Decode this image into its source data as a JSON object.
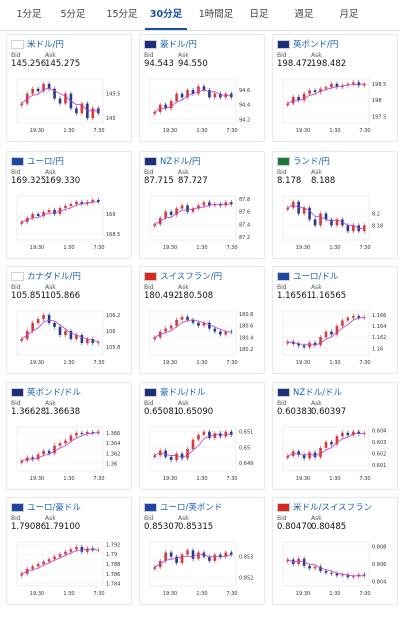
{
  "tabs": [
    {
      "label": "1分足"
    },
    {
      "label": "5分足"
    },
    {
      "label": "15分足"
    },
    {
      "label": "30分足",
      "active": true
    },
    {
      "label": "1時間足"
    },
    {
      "label": "日足"
    },
    {
      "label": "週足"
    },
    {
      "label": "月足"
    }
  ],
  "bid_label": "Bid",
  "ask_label": "Ask",
  "colors": {
    "up": "#d83a3a",
    "down": "#233a8c",
    "ma": "#c43bd0",
    "accent": "#1a4fa0"
  },
  "x_ticks": [
    "19:30",
    "1:30",
    "7:30"
  ],
  "cards": [
    {
      "pair": "米ドル/円",
      "flag": "us",
      "bid": "145.256",
      "ask": "145.275",
      "chart_data": {
        "type": "candlestick",
        "ylim": [
          144.9,
          145.8
        ],
        "yticks": [
          "145.5",
          "145"
        ],
        "close": [
          145.3,
          145.5,
          145.6,
          145.55,
          145.7,
          145.6,
          145.4,
          145.3,
          145.5,
          145.2,
          145.1,
          145.3,
          145.0,
          145.2,
          145.1
        ]
      }
    },
    {
      "pair": "豪ドル/円",
      "flag": "au",
      "bid": "94.543",
      "ask": "94.550",
      "chart_data": {
        "type": "candlestick",
        "ylim": [
          94.15,
          94.75
        ],
        "yticks": [
          "94.6",
          "94.4",
          "94.2"
        ],
        "close": [
          94.3,
          94.4,
          94.35,
          94.45,
          94.55,
          94.5,
          94.6,
          94.55,
          94.65,
          94.6,
          94.5,
          94.55,
          94.5,
          94.55,
          94.5
        ]
      }
    },
    {
      "pair": "英ポンド/円",
      "flag": "gb",
      "bid": "198.472",
      "ask": "198.482",
      "chart_data": {
        "type": "candlestick",
        "ylim": [
          197.3,
          198.65
        ],
        "yticks": [
          "198.5",
          "198",
          "197.5"
        ],
        "close": [
          197.9,
          198.1,
          198.0,
          198.2,
          198.3,
          198.25,
          198.35,
          198.4,
          198.5,
          198.4,
          198.45,
          198.5,
          198.55,
          198.45,
          198.5
        ]
      }
    },
    {
      "pair": "ユーロ/円",
      "flag": "eu",
      "bid": "169.325",
      "ask": "169.330",
      "chart_data": {
        "type": "candlestick",
        "ylim": [
          168.35,
          169.45
        ],
        "yticks": [
          "169",
          "168.5"
        ],
        "close": [
          168.8,
          168.9,
          169.0,
          168.95,
          169.05,
          169.1,
          169.0,
          169.15,
          169.2,
          169.25,
          169.3,
          169.25,
          169.3,
          169.35,
          169.3
        ]
      }
    },
    {
      "pair": "NZドル/円",
      "flag": "nz",
      "bid": "87.715",
      "ask": "87.727",
      "chart_data": {
        "type": "candlestick",
        "ylim": [
          87.15,
          87.85
        ],
        "yticks": [
          "87.8",
          "87.6",
          "87.4",
          "87.2"
        ],
        "close": [
          87.4,
          87.5,
          87.6,
          87.55,
          87.65,
          87.7,
          87.6,
          87.65,
          87.7,
          87.75,
          87.7,
          87.72,
          87.7,
          87.75,
          87.72
        ]
      }
    },
    {
      "pair": "ランド/円",
      "flag": "za",
      "bid": "8.178",
      "ask": "8.188",
      "chart_data": {
        "type": "candlestick",
        "ylim": [
          8.155,
          8.23
        ],
        "yticks": [
          "8.2",
          "8.18"
        ],
        "close": [
          8.21,
          8.22,
          8.2,
          8.21,
          8.19,
          8.18,
          8.2,
          8.19,
          8.18,
          8.19,
          8.18,
          8.17,
          8.18,
          8.17,
          8.18
        ]
      }
    },
    {
      "pair": "カナダドル/円",
      "flag": "ca",
      "bid": "105.851",
      "ask": "105.866",
      "chart_data": {
        "type": "candlestick",
        "ylim": [
          105.7,
          106.25
        ],
        "yticks": [
          "106.2",
          "106",
          "105.8"
        ],
        "close": [
          105.9,
          106.0,
          106.1,
          106.15,
          106.2,
          106.1,
          106.05,
          105.95,
          106.0,
          105.9,
          105.95,
          105.85,
          105.9,
          105.85,
          105.86
        ]
      }
    },
    {
      "pair": "スイスフラン/円",
      "flag": "ch",
      "bid": "180.492",
      "ask": "180.508",
      "chart_data": {
        "type": "candlestick",
        "ylim": [
          180.1,
          180.85
        ],
        "yticks": [
          "180.8",
          "180.6",
          "180.4",
          "180.2"
        ],
        "close": [
          180.4,
          180.5,
          180.55,
          180.6,
          180.7,
          180.75,
          180.7,
          180.65,
          180.6,
          180.65,
          180.55,
          180.5,
          180.45,
          180.5,
          180.49
        ]
      }
    },
    {
      "pair": "ユーロ/ドル",
      "flag": "eu",
      "bid": "1.16561",
      "ask": "1.16565",
      "chart_data": {
        "type": "candlestick",
        "ylim": [
          1.1588,
          1.1667
        ],
        "yticks": [
          "1.166",
          "1.164",
          "1.162",
          "1.16"
        ],
        "close": [
          1.1612,
          1.1608,
          1.1605,
          1.1602,
          1.161,
          1.1606,
          1.162,
          1.163,
          1.1625,
          1.164,
          1.165,
          1.1655,
          1.1658,
          1.1655,
          1.1656
        ]
      }
    },
    {
      "pair": "英ポンド/ドル",
      "flag": "gb",
      "bid": "1.36628",
      "ask": "1.36638",
      "chart_data": {
        "type": "candlestick",
        "ylim": [
          1.3585,
          1.3672
        ],
        "yticks": [
          "1.366",
          "1.364",
          "1.362",
          "1.36"
        ],
        "close": [
          1.3605,
          1.3612,
          1.3608,
          1.3618,
          1.3625,
          1.362,
          1.3635,
          1.364,
          1.3645,
          1.3655,
          1.366,
          1.3658,
          1.3662,
          1.366,
          1.3663
        ]
      }
    },
    {
      "pair": "豪ドル/ドル",
      "flag": "au",
      "bid": "0.65081",
      "ask": "0.65090",
      "chart_data": {
        "type": "candlestick",
        "ylim": [
          0.6485,
          0.6513
        ],
        "yticks": [
          "0.651",
          "0.65",
          "0.649"
        ],
        "close": [
          0.6495,
          0.6498,
          0.6494,
          0.6492,
          0.6496,
          0.6493,
          0.6499,
          0.6505,
          0.6508,
          0.651,
          0.6506,
          0.6509,
          0.6507,
          0.651,
          0.6508
        ]
      }
    },
    {
      "pair": "NZドル/ドル",
      "flag": "nz",
      "bid": "0.60383",
      "ask": "0.60397",
      "chart_data": {
        "type": "candlestick",
        "ylim": [
          0.6005,
          0.6043
        ],
        "yticks": [
          "0.604",
          "0.603",
          "0.602",
          "0.601"
        ],
        "close": [
          0.6018,
          0.6022,
          0.6019,
          0.6016,
          0.6021,
          0.6017,
          0.6025,
          0.603,
          0.6028,
          0.6035,
          0.6038,
          0.6036,
          0.6039,
          0.6037,
          0.6038
        ]
      }
    },
    {
      "pair": "ユーロ/豪ドル",
      "flag": "eu",
      "bid": "1.79086",
      "ask": "1.79100",
      "chart_data": {
        "type": "candlestick",
        "ylim": [
          1.7835,
          1.7925
        ],
        "yticks": [
          "1.792",
          "1.79",
          "1.788",
          "1.786",
          "1.784"
        ],
        "close": [
          1.786,
          1.787,
          1.7875,
          1.788,
          1.7885,
          1.789,
          1.7895,
          1.79,
          1.7905,
          1.791,
          1.7915,
          1.7905,
          1.7912,
          1.7908,
          1.7909
        ]
      }
    },
    {
      "pair": "ユーロ/英ポンド",
      "flag": "eu",
      "bid": "0.85307",
      "ask": "0.85315",
      "chart_data": {
        "type": "candlestick",
        "ylim": [
          0.8516,
          0.8537
        ],
        "yticks": [
          "0.853",
          "0.852"
        ],
        "close": [
          0.8525,
          0.8528,
          0.8532,
          0.853,
          0.8527,
          0.8531,
          0.8533,
          0.8529,
          0.8532,
          0.853,
          0.8528,
          0.8531,
          0.853,
          0.8532,
          0.8531
        ]
      }
    },
    {
      "pair": "米ドル/スイスフラン",
      "flag": "ch",
      "bid": "0.80470",
      "ask": "0.80485",
      "chart_data": {
        "type": "candlestick",
        "ylim": [
          0.8035,
          0.8085
        ],
        "yticks": [
          "0.808",
          "0.806",
          "0.804"
        ],
        "close": [
          0.8065,
          0.806,
          0.8066,
          0.8058,
          0.8055,
          0.8057,
          0.8052,
          0.805,
          0.8049,
          0.8047,
          0.8048,
          0.8045,
          0.8046,
          0.8048,
          0.8047
        ]
      }
    }
  ]
}
